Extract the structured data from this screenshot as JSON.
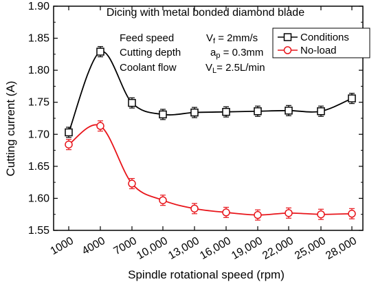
{
  "chart_data": {
    "type": "line",
    "title": "Dicing with metal bonded diamond blade",
    "xlabel": "Spindle rotational speed (rpm)",
    "ylabel": "Cutting current (A)",
    "categories": [
      "1000",
      "4000",
      "7000",
      "10,000",
      "13,000",
      "16,000",
      "19,000",
      "22,000",
      "25,000",
      "28,000"
    ],
    "ylim": [
      1.55,
      1.9
    ],
    "yticks": [
      "1.55",
      "1.60",
      "1.65",
      "1.70",
      "1.75",
      "1.80",
      "1.85",
      "1.90"
    ],
    "grid": false,
    "legend_position": "top-right",
    "conditions": [
      {
        "label": "Feed speed",
        "symbol": "V",
        "subscript": "f",
        "value": " = 2mm/s"
      },
      {
        "label": "Cutting depth",
        "symbol": "a",
        "subscript": "p",
        "value": " = 0.3mm"
      },
      {
        "label": "Coolant flow",
        "symbol": "V",
        "subscript": "L",
        "value": "= 2.5L/min"
      }
    ],
    "series": [
      {
        "name": "Conditions",
        "color": "#000000",
        "marker": "square",
        "values": [
          1.703,
          1.829,
          1.749,
          1.731,
          1.734,
          1.735,
          1.736,
          1.737,
          1.736,
          1.756
        ],
        "errors": [
          0.008,
          0.008,
          0.008,
          0.008,
          0.008,
          0.008,
          0.008,
          0.008,
          0.008,
          0.008
        ]
      },
      {
        "name": "No-load",
        "color": "#e8141a",
        "marker": "circle",
        "values": [
          1.684,
          1.713,
          1.623,
          1.597,
          1.584,
          1.578,
          1.574,
          1.577,
          1.575,
          1.576
        ],
        "errors": [
          0.008,
          0.008,
          0.008,
          0.008,
          0.008,
          0.008,
          0.008,
          0.008,
          0.008,
          0.008
        ]
      }
    ]
  }
}
